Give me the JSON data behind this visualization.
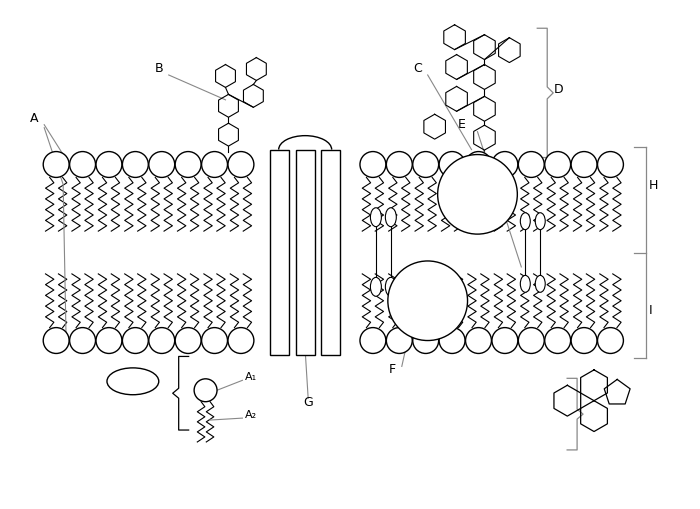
{
  "bg_color": "#ffffff",
  "line_color": "#000000",
  "gray_color": "#888888",
  "label_A": "A",
  "label_A1": "A₁",
  "label_A2": "A₂",
  "label_B": "B",
  "label_C": "C",
  "label_D": "D",
  "label_E": "E",
  "label_F": "F",
  "label_G": "G",
  "label_H": "H",
  "label_I": "I"
}
